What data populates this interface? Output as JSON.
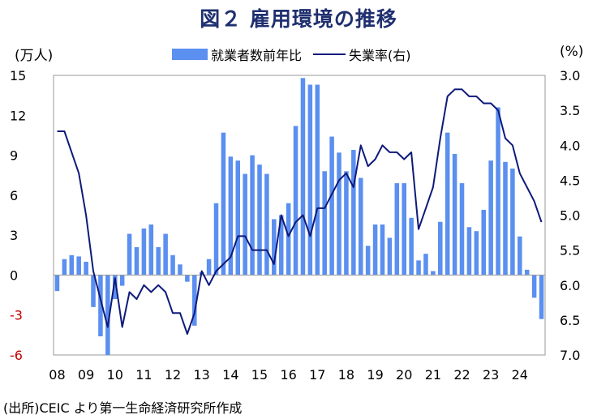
{
  "chart_data": {
    "type": "bar+line",
    "title": "図２ 雇用環境の推移",
    "y_left_unit": "(万人)",
    "y_right_unit": "(%)",
    "source": "(出所)CEIC より第一生命経済研究所作成",
    "legend": [
      "就業者数前年比",
      "失業率(右)"
    ],
    "x_tick_labels": [
      "08",
      "09",
      "10",
      "11",
      "12",
      "13",
      "14",
      "15",
      "16",
      "17",
      "18",
      "19",
      "20",
      "21",
      "22",
      "23",
      "24"
    ],
    "y_left_ticks": [
      15,
      12,
      9,
      6,
      3,
      0,
      -3,
      -6
    ],
    "y_left_tick_labels": [
      "15",
      "12",
      "9",
      "6",
      "3",
      "0",
      "-3",
      "-6"
    ],
    "y_left_range": [
      -6,
      15
    ],
    "y_right_ticks": [
      3.0,
      3.5,
      4.0,
      4.5,
      5.0,
      5.5,
      6.0,
      6.5,
      7.0
    ],
    "y_right_tick_labels": [
      "3.0",
      "3.5",
      "4.0",
      "4.5",
      "5.0",
      "5.5",
      "6.0",
      "6.5",
      "7.0"
    ],
    "y_right_range": [
      3.0,
      7.0
    ],
    "y_right_inverted": true,
    "bar_color": "#5B8FF0",
    "line_color": "#0E1A7A",
    "title_color": "#1F2F6F",
    "quarters_start": "2008Q1",
    "series": [
      {
        "name": "就業者数前年比",
        "kind": "bar",
        "values": [
          -1.2,
          1.2,
          1.5,
          1.4,
          1.0,
          -2.4,
          -4.6,
          -6.0,
          -1.8,
          -0.8,
          3.1,
          2.1,
          3.5,
          3.8,
          2.1,
          3.1,
          1.5,
          0.8,
          -0.5,
          -3.8,
          0.2,
          1.2,
          5.4,
          10.7,
          8.9,
          8.6,
          7.6,
          9.0,
          8.3,
          7.6,
          4.2,
          4.5,
          5.4,
          11.2,
          14.8,
          14.3,
          14.3,
          7.8,
          10.4,
          9.2,
          7.8,
          9.4,
          7.3,
          2.2,
          3.8,
          3.8,
          2.8,
          6.9,
          6.9,
          4.3,
          1.1,
          1.6,
          0.3,
          4.0,
          10.7,
          9.1,
          6.9,
          3.6,
          3.3,
          4.9,
          8.6,
          12.6,
          8.5,
          8.0,
          2.9,
          0.4,
          -1.7,
          -3.3
        ]
      },
      {
        "name": "失業率(右)",
        "kind": "line",
        "axis": "right",
        "values": [
          3.8,
          3.8,
          4.1,
          4.4,
          5.0,
          5.8,
          6.2,
          6.6,
          5.9,
          6.6,
          6.1,
          6.2,
          6.0,
          6.1,
          6.0,
          6.1,
          6.4,
          6.4,
          6.7,
          6.4,
          5.8,
          6.0,
          5.8,
          5.7,
          5.6,
          5.3,
          5.3,
          5.5,
          5.5,
          5.5,
          5.7,
          5.0,
          5.3,
          5.1,
          5.0,
          5.3,
          4.9,
          4.9,
          4.7,
          4.5,
          4.4,
          4.6,
          4.0,
          4.3,
          4.2,
          4.0,
          4.1,
          4.1,
          4.2,
          4.1,
          5.2,
          4.9,
          4.6,
          3.9,
          3.3,
          3.2,
          3.2,
          3.3,
          3.3,
          3.4,
          3.4,
          3.5,
          3.9,
          4.0,
          4.4,
          4.6,
          4.8,
          5.1
        ]
      }
    ]
  }
}
